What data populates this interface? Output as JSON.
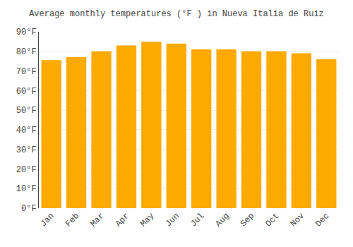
{
  "chart_data": {
    "type": "bar",
    "title": "Average monthly temperatures (°F ) in Nueva Italia de Ruiz",
    "categories": [
      "Jan",
      "Feb",
      "Mar",
      "Apr",
      "May",
      "Jun",
      "Jul",
      "Aug",
      "Sep",
      "Oct",
      "Nov",
      "Dec"
    ],
    "values": [
      75.5,
      77.0,
      80.0,
      83.0,
      85.0,
      84.0,
      81.0,
      81.0,
      80.0,
      80.0,
      79.0,
      76.0
    ],
    "color": "#FFAA00",
    "ylim": [
      0,
      90
    ],
    "yticks": [
      {
        "value": 0,
        "label": "0°F"
      },
      {
        "value": 10,
        "label": "10°F"
      },
      {
        "value": 20,
        "label": "20°F"
      },
      {
        "value": 30,
        "label": "30°F"
      },
      {
        "value": 40,
        "label": "40°F"
      },
      {
        "value": 50,
        "label": "50°F"
      },
      {
        "value": 60,
        "label": "60°F"
      },
      {
        "value": 70,
        "label": "70°F"
      },
      {
        "value": 80,
        "label": "80°F"
      },
      {
        "value": 90,
        "label": "90°F"
      }
    ],
    "grid": true
  }
}
